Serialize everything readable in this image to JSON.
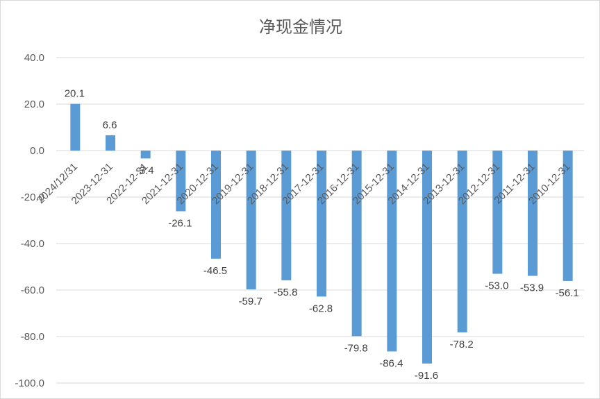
{
  "chart_data": {
    "type": "bar",
    "title": "净现金情况",
    "xlabel": "",
    "ylabel": "",
    "ylim": [
      -100,
      40
    ],
    "yticks": [
      40,
      20,
      0,
      -20,
      -40,
      -60,
      -80,
      -100
    ],
    "ytick_labels": [
      "40.0",
      "20.0",
      "0.0",
      "-20.0",
      "-40.0",
      "-60.0",
      "-80.0",
      "-100.0"
    ],
    "grid": true,
    "legend": "none",
    "bar_color": "#5b9bd5",
    "categories": [
      "2024/12/31",
      "2023-12-31",
      "2022-12-31",
      "2021-12-31",
      "2020-12-31",
      "2019-12-31",
      "2018-12-31",
      "2017-12-31",
      "2016-12-31",
      "2015-12-31",
      "2014-12-31",
      "2013-12-31",
      "2012-12-31",
      "2011-12-31",
      "2010-12-31"
    ],
    "values": [
      20.1,
      6.6,
      -3.4,
      -26.1,
      -46.5,
      -59.7,
      -55.8,
      -62.8,
      -79.8,
      -86.4,
      -91.6,
      -78.2,
      -53.0,
      -53.9,
      -56.1
    ],
    "value_labels": [
      "20.1",
      "6.6",
      "-3.4",
      "-26.1",
      "-46.5",
      "-59.7",
      "-55.8",
      "-62.8",
      "-79.8",
      "-86.4",
      "-91.6",
      "-78.2",
      "-53.0",
      "-53.9",
      "-56.1"
    ]
  }
}
